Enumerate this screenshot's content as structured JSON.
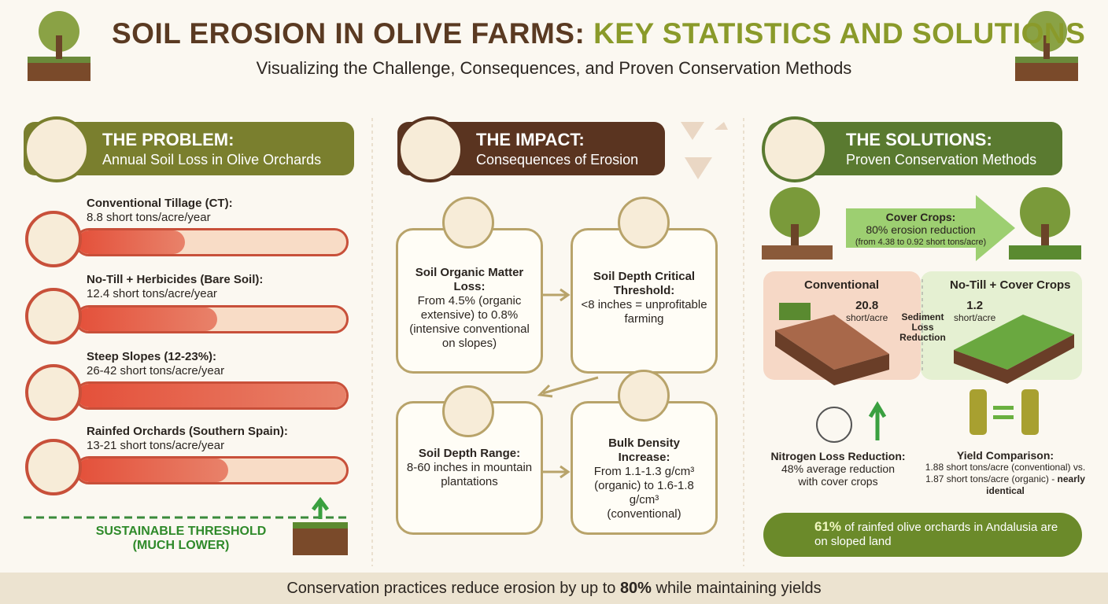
{
  "header": {
    "title_main": "SOIL EROSION IN OLIVE FARMS:",
    "title_accent": "KEY STATISTICS AND SOLUTIONS",
    "subtitle": "Visualizing the Challenge, Consequences, and Proven Conservation Methods"
  },
  "problem": {
    "heading": "THE PROBLEM:",
    "subheading": "Annual Soil Loss in Olive Orchards",
    "items": [
      {
        "label": "Conventional Tillage (CT):",
        "value": "8.8 short tons/acre/year"
      },
      {
        "label": "No-Till + Herbicides (Bare Soil):",
        "value": "12.4 short tons/acre/year"
      },
      {
        "label": "Steep Slopes (12-23%):",
        "value": "26-42 short tons/acre/year"
      },
      {
        "label": "Rainfed Orchards (Southern Spain):",
        "value": "13-21 short tons/acre/year"
      }
    ],
    "threshold": "SUSTAINABLE THRESHOLD",
    "threshold_note": "(MUCH LOWER)"
  },
  "impact": {
    "heading": "THE IMPACT:",
    "subheading": "Consequences of Erosion",
    "boxes": [
      {
        "title": "Soil Organic Matter Loss:",
        "text": "From 4.5% (organic extensive) to 0.8% (intensive conventional on slopes)"
      },
      {
        "title": "Soil Depth Critical Threshold:",
        "text": "<8 inches = unprofitable farming"
      },
      {
        "title": "Soil Depth Range:",
        "text": "8-60 inches in mountain plantations"
      },
      {
        "title": "Bulk Density Increase:",
        "text": "From 1.1-1.3 g/cm³ (organic) to 1.6-1.8 g/cm³ (conventional)"
      }
    ]
  },
  "solutions": {
    "heading": "THE SOLUTIONS:",
    "subheading": "Proven Conservation Methods",
    "cover_crops": {
      "title": "Cover Crops:",
      "line": "80% erosion reduction",
      "detail": "(from 4.38 to 0.92 short tons/acre)"
    },
    "comparison": {
      "left_title": "Conventional",
      "left_value": "20.8",
      "left_unit": "short/acre",
      "middle": "Sediment Loss Reduction",
      "right_title": "No-Till + Cover Crops",
      "right_value": "1.2",
      "right_unit": "short/acre"
    },
    "nitrogen": {
      "title": "Nitrogen Loss Reduction:",
      "text": "48% average reduction with cover crops"
    },
    "yield": {
      "title": "Yield Comparison:",
      "text_a": "1.88 short tons/acre (conventional) vs. 1.87 short tons/acre (organic) -",
      "text_b": "nearly identical"
    },
    "note": {
      "strong": "61%",
      "text": "of rainfed olive orchards in Andalusia are on sloped land"
    }
  },
  "footer": {
    "before": "Conservation practices reduce erosion by up to",
    "strong": "80%",
    "after": "while maintaining yields"
  }
}
